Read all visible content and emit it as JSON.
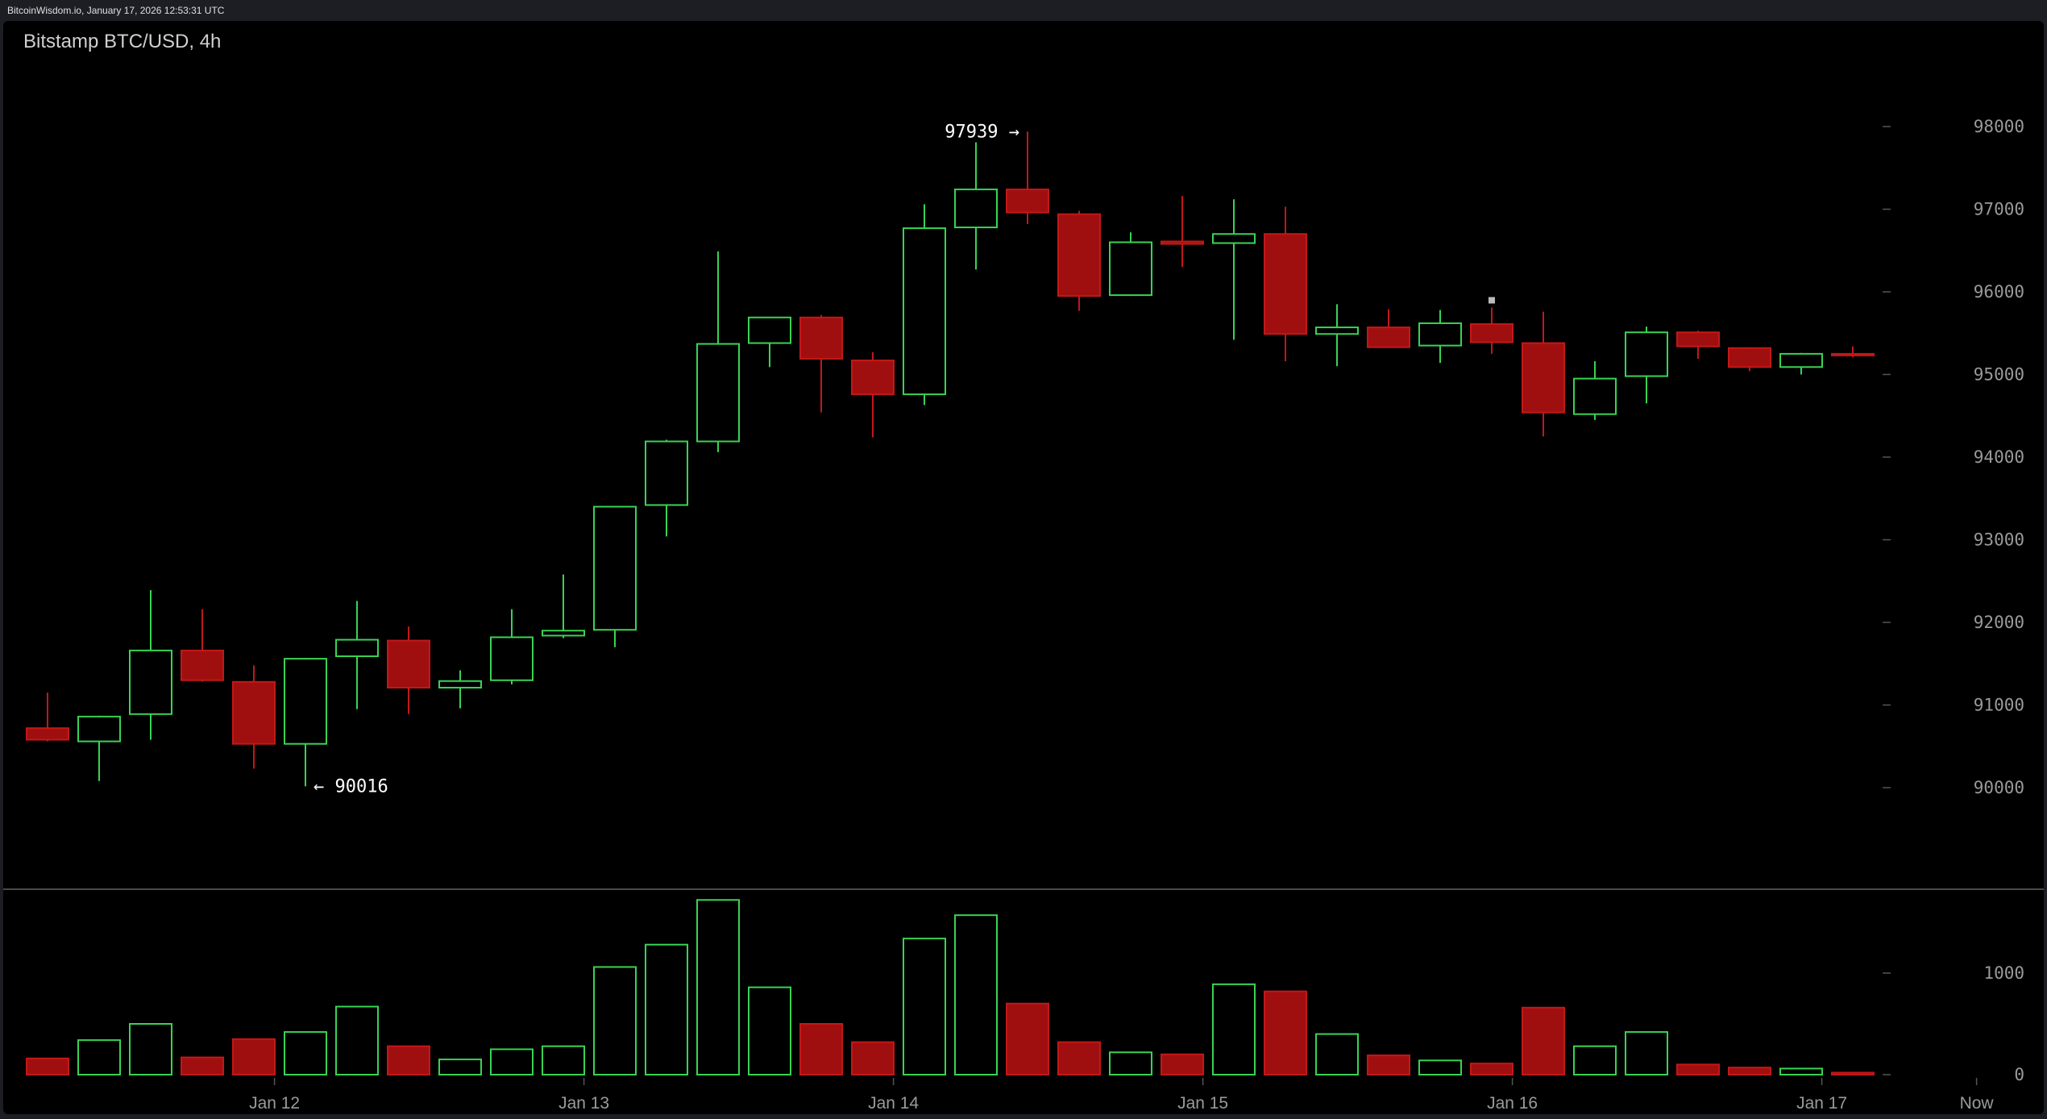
{
  "header": {
    "text": "BitcoinWisdom.io, January 17, 2026 12:53:31 UTC"
  },
  "chart_data": {
    "type": "candlestick",
    "title": "Bitstamp BTC/USD, 4h",
    "price_ticks": [
      90000,
      91000,
      92000,
      93000,
      94000,
      95000,
      96000,
      97000,
      98000
    ],
    "volume_ticks": [
      0,
      1000
    ],
    "ylim": [
      88400,
      98600
    ],
    "volume_ylim": [
      0,
      1750
    ],
    "x_ticks": [
      {
        "label": "Jan 12",
        "index": 4.4
      },
      {
        "label": "Jan 13",
        "index": 10.4
      },
      {
        "label": "Jan 14",
        "index": 16.4
      },
      {
        "label": "Jan 15",
        "index": 22.4
      },
      {
        "label": "Jan 16",
        "index": 28.4
      },
      {
        "label": "Jan 17",
        "index": 34.4
      },
      {
        "label": "Now",
        "index": 37.4
      }
    ],
    "annotations": [
      {
        "label": "97939 →",
        "price": 97939,
        "index": 19,
        "side": "left"
      },
      {
        "label": "← 90016",
        "price": 90016,
        "index": 5,
        "side": "right"
      }
    ],
    "candles": [
      {
        "open": 90720,
        "high": 91150,
        "low": 90560,
        "close": 90580,
        "volume": 160
      },
      {
        "open": 90560,
        "high": 90870,
        "low": 90080,
        "close": 90860,
        "volume": 340
      },
      {
        "open": 90890,
        "high": 92390,
        "low": 90580,
        "close": 91660,
        "volume": 500
      },
      {
        "open": 91660,
        "high": 92160,
        "low": 91280,
        "close": 91300,
        "volume": 170
      },
      {
        "open": 91280,
        "high": 91480,
        "low": 90230,
        "close": 90530,
        "volume": 350
      },
      {
        "open": 90530,
        "high": 91570,
        "low": 90016,
        "close": 91560,
        "volume": 420
      },
      {
        "open": 91590,
        "high": 92260,
        "low": 90950,
        "close": 91790,
        "volume": 670
      },
      {
        "open": 91780,
        "high": 91950,
        "low": 90890,
        "close": 91210,
        "volume": 280
      },
      {
        "open": 91210,
        "high": 91420,
        "low": 90960,
        "close": 91290,
        "volume": 150
      },
      {
        "open": 91300,
        "high": 92160,
        "low": 91250,
        "close": 91820,
        "volume": 250
      },
      {
        "open": 91840,
        "high": 92580,
        "low": 91810,
        "close": 91900,
        "volume": 280
      },
      {
        "open": 91910,
        "high": 93410,
        "low": 91700,
        "close": 93400,
        "volume": 1060
      },
      {
        "open": 93420,
        "high": 94210,
        "low": 93040,
        "close": 94190,
        "volume": 1280
      },
      {
        "open": 94190,
        "high": 96490,
        "low": 94060,
        "close": 95370,
        "volume": 1720
      },
      {
        "open": 95380,
        "high": 95690,
        "low": 95090,
        "close": 95690,
        "volume": 860
      },
      {
        "open": 95690,
        "high": 95720,
        "low": 94540,
        "close": 95190,
        "volume": 500
      },
      {
        "open": 95170,
        "high": 95270,
        "low": 94240,
        "close": 94760,
        "volume": 320
      },
      {
        "open": 94760,
        "high": 97060,
        "low": 94630,
        "close": 96770,
        "volume": 1340
      },
      {
        "open": 96780,
        "high": 97810,
        "low": 96270,
        "close": 97240,
        "volume": 1570
      },
      {
        "open": 97240,
        "high": 97939,
        "low": 96820,
        "close": 96960,
        "volume": 700
      },
      {
        "open": 96940,
        "high": 96980,
        "low": 95770,
        "close": 95950,
        "volume": 320
      },
      {
        "open": 95960,
        "high": 96720,
        "low": 95950,
        "close": 96600,
        "volume": 220
      },
      {
        "open": 96610,
        "high": 97160,
        "low": 96300,
        "close": 96580,
        "volume": 200
      },
      {
        "open": 96590,
        "high": 97120,
        "low": 95420,
        "close": 96700,
        "volume": 890
      },
      {
        "open": 96700,
        "high": 97030,
        "low": 95160,
        "close": 95490,
        "volume": 820
      },
      {
        "open": 95490,
        "high": 95850,
        "low": 95100,
        "close": 95570,
        "volume": 400
      },
      {
        "open": 95570,
        "high": 95790,
        "low": 95330,
        "close": 95330,
        "volume": 190
      },
      {
        "open": 95350,
        "high": 95780,
        "low": 95140,
        "close": 95620,
        "volume": 140
      },
      {
        "open": 95610,
        "high": 95810,
        "low": 95250,
        "close": 95390,
        "volume": 110
      },
      {
        "open": 95380,
        "high": 95760,
        "low": 94250,
        "close": 94540,
        "volume": 660
      },
      {
        "open": 94520,
        "high": 95160,
        "low": 94450,
        "close": 94950,
        "volume": 280
      },
      {
        "open": 94980,
        "high": 95580,
        "low": 94650,
        "close": 95510,
        "volume": 420
      },
      {
        "open": 95510,
        "high": 95530,
        "low": 95190,
        "close": 95340,
        "volume": 100
      },
      {
        "open": 95320,
        "high": 95330,
        "low": 95040,
        "close": 95090,
        "volume": 70
      },
      {
        "open": 95090,
        "high": 95260,
        "low": 95000,
        "close": 95250,
        "volume": 60
      },
      {
        "open": 95250,
        "high": 95340,
        "low": 95210,
        "close": 95230,
        "volume": 20
      }
    ],
    "colors": {
      "background": "#000000",
      "frame": "#1c1e24",
      "up": "#39d353",
      "down": "#a00f0f",
      "down_stroke": "#c21818",
      "grid": "#555555",
      "divider": "#4a4a4a",
      "marker": "#bbbbbb"
    }
  }
}
